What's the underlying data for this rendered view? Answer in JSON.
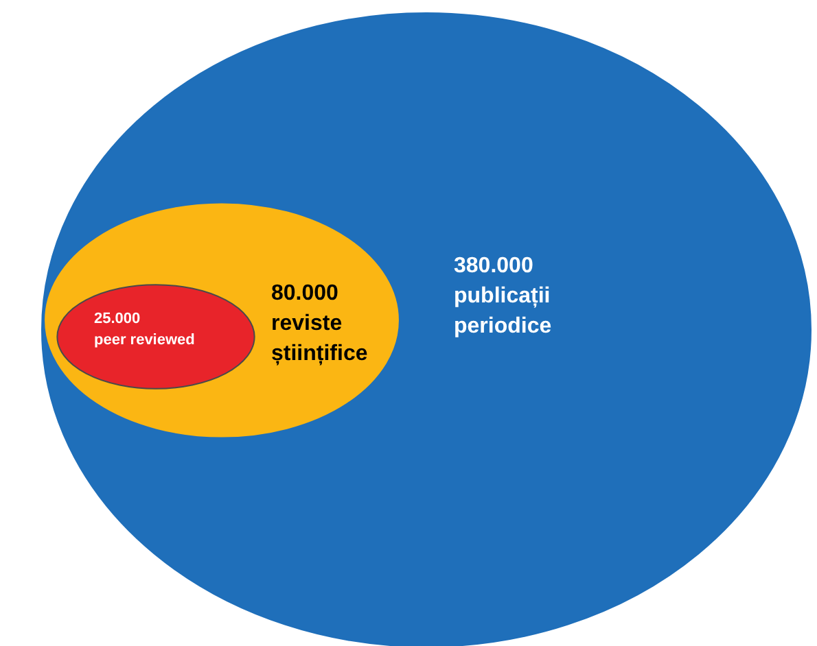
{
  "chart_data": {
    "type": "other",
    "categories": [
      "publicații\nperiodice",
      "reviste\nștiințifice",
      "peer reviewed"
    ],
    "values": [
      380000,
      80000,
      25000
    ],
    "value_labels": [
      "380.000",
      "80.000",
      "25.000"
    ],
    "colors": [
      "#1f6fba",
      "#fbb613",
      "#e8242a"
    ]
  }
}
